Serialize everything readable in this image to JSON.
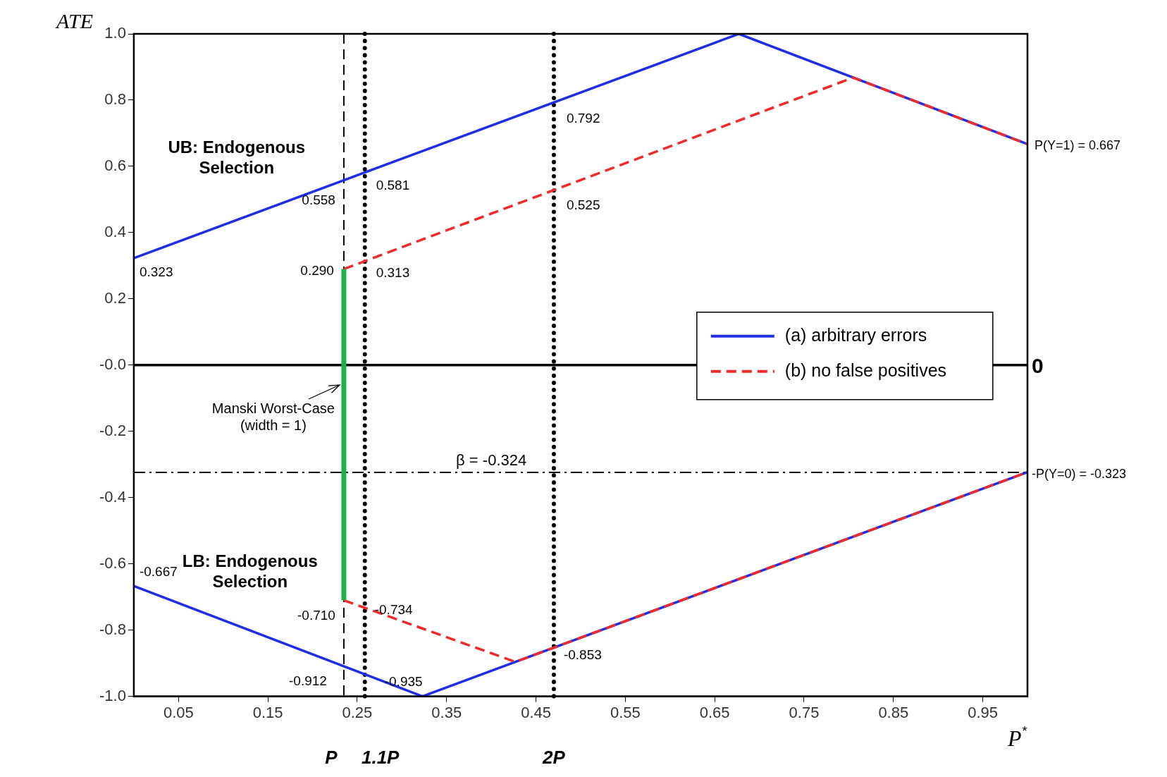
{
  "chart_data": {
    "type": "line",
    "xlabel": "P$^{*}$",
    "ylabel": "ATE",
    "xlim": [
      0,
      1
    ],
    "xticks": [
      0.05,
      0.15,
      0.25,
      0.35,
      0.45,
      0.55,
      0.65,
      0.75,
      0.85,
      0.95
    ],
    "ylim": [
      -1,
      1
    ],
    "yticks": [
      {
        "value": -1,
        "label": "-1.0"
      },
      -0.8,
      -0.6,
      -0.4,
      -0.2,
      {
        "value": 0,
        "label": "-0.0"
      },
      0.2,
      0.4,
      0.6,
      0.8,
      {
        "value": 1,
        "label": "1.0"
      }
    ],
    "legend": "right",
    "marker": "none",
    "series": [
      {
        "name": "(a) arbitrary errors",
        "color": "#1f2ee6",
        "line_style": "solid",
        "x": [
          0,
          0.677,
          1
        ],
        "values": [
          0.323,
          1.0,
          0.667
        ]
      },
      {
        "color": "#1f2ee6",
        "line_style": "solid",
        "x": [
          0,
          0.323,
          1
        ],
        "values": [
          -0.667,
          -1.0,
          -0.323
        ]
      },
      {
        "name": "(b) no false positives",
        "color": "#f02a2a",
        "line_style": "dashed",
        "x": [
          0.235,
          0.805,
          1
        ],
        "values": [
          0.29,
          0.868,
          0.667
        ]
      },
      {
        "color": "#f02a2a",
        "line_style": "dashed",
        "x": [
          0.235,
          0.427,
          1
        ],
        "values": [
          -0.71,
          -0.896,
          -0.323
        ]
      },
      {
        "color": "#1fae4a",
        "line_style": "solid",
        "x": [
          0.235,
          0.235
        ],
        "values": [
          -0.71,
          0.29
        ]
      }
    ],
    "ref_lines": [
      {
        "axis": "x",
        "value": 0.235,
        "label": "P",
        "line_style": "dashed",
        "color": "#000000"
      },
      {
        "axis": "x",
        "value": 0.2585,
        "label": "1.1P",
        "line_style": "dotted",
        "color": "#000000"
      },
      {
        "axis": "x",
        "value": 0.47,
        "label": "2P",
        "line_style": "dotted",
        "color": "#000000"
      },
      {
        "axis": "y",
        "value": 0,
        "label": "0",
        "line_style": "solid",
        "color": "#000000"
      },
      {
        "axis": "y",
        "value": -0.324,
        "label": "β = -0.324",
        "line_style": "dashdot",
        "color": "#000000"
      }
    ],
    "annotations": [
      "UB: Endogenous Selection",
      "LB: Endogenous Selection",
      {
        "text": "Manski Worst-Case (width = 1)",
        "x": 0.235,
        "y": -0.06
      },
      {
        "text": "0.323",
        "x": 0,
        "y": 0.323
      },
      {
        "text": "0.558",
        "x": 0.235,
        "y": 0.558
      },
      {
        "text": "0.581",
        "x": 0.2585,
        "y": 0.581
      },
      {
        "text": "0.792",
        "x": 0.47,
        "y": 0.792
      },
      {
        "text": "0.525",
        "x": 0.47,
        "y": 0.525
      },
      {
        "text": "0.290",
        "x": 0.235,
        "y": 0.29
      },
      {
        "text": "0.313",
        "x": 0.2585,
        "y": 0.313
      },
      {
        "text": "-0.667",
        "x": 0,
        "y": -0.667
      },
      {
        "text": "-0.710",
        "x": 0.235,
        "y": -0.71
      },
      {
        "text": "-0.734",
        "x": 0.2585,
        "y": -0.734
      },
      {
        "text": "-0.912",
        "x": 0.235,
        "y": -0.912
      },
      {
        "text": "-0.935",
        "x": 0.2585,
        "y": -0.935
      },
      {
        "text": "-0.853",
        "x": 0.47,
        "y": -0.853
      },
      {
        "text": "P(Y=1) = 0.667",
        "x": 1,
        "y": 0.667
      },
      {
        "text": "-P(Y=0) = -0.323",
        "x": 1,
        "y": -0.323
      }
    ]
  }
}
